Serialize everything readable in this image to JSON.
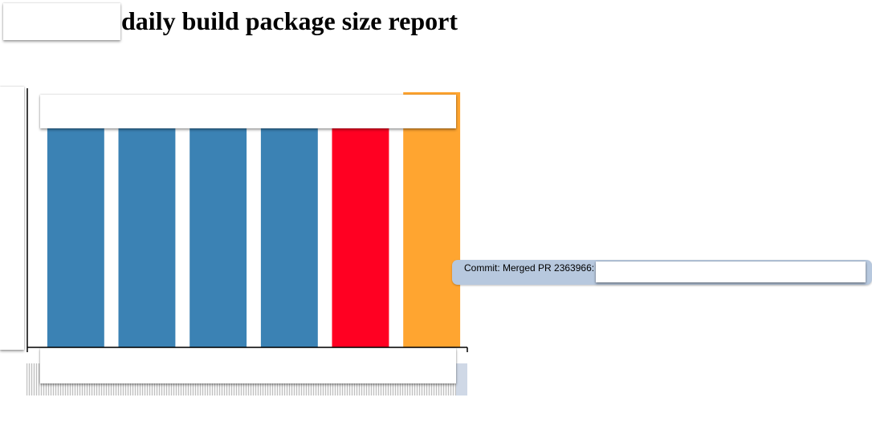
{
  "header": {
    "title": "daily build package size report"
  },
  "tooltip": {
    "text": "Commit: Merged PR 2363966:"
  },
  "colors": {
    "normal": "#3b82b4",
    "decrease": "#ff0022",
    "highlight": "#ffa530"
  },
  "chart_data": {
    "type": "bar",
    "categories": [
      "",
      "",
      "",
      "",
      "",
      ""
    ],
    "series": [
      {
        "values": [
          100,
          100,
          100,
          100,
          100,
          107
        ]
      }
    ],
    "bar_colors": [
      "#3b82b4",
      "#3b82b4",
      "#3b82b4",
      "#3b82b4",
      "#ff0022",
      "#ffa530"
    ],
    "ylim": [
      0,
      112
    ],
    "grid": false,
    "xlabel": "",
    "ylabel": ""
  }
}
